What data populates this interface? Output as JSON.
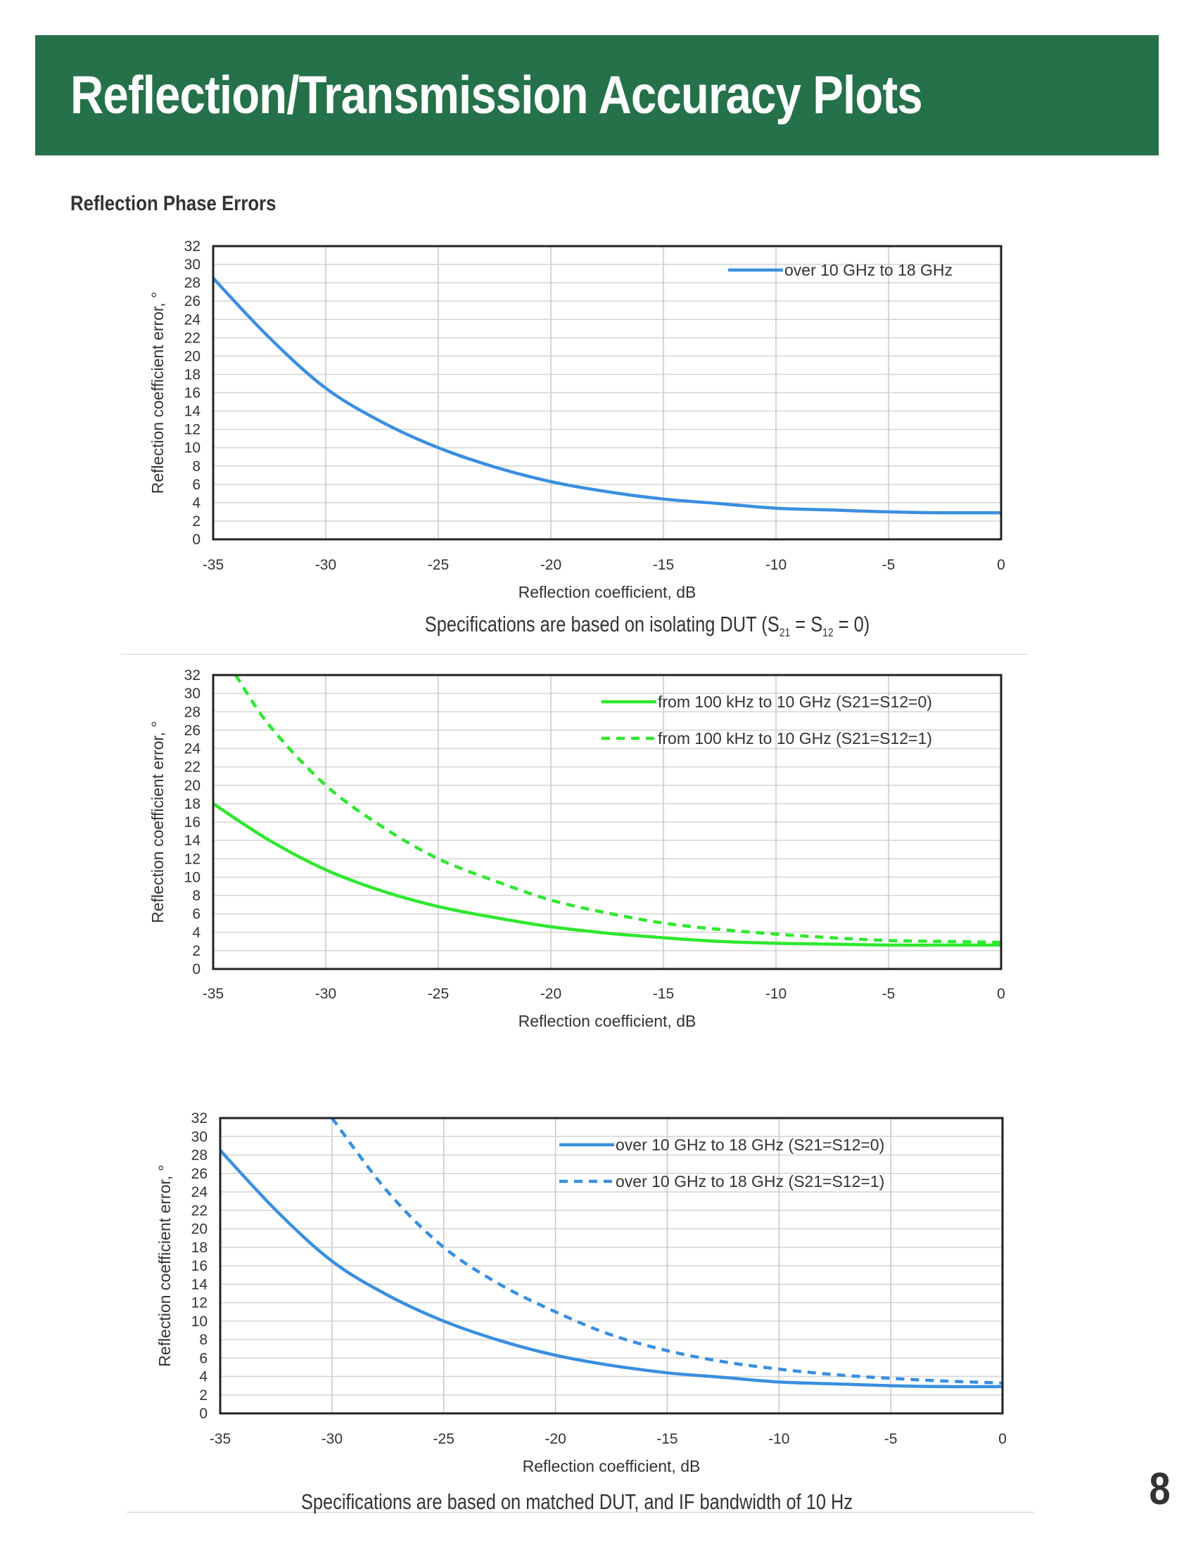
{
  "header": {
    "title": "Reflection/Transmission Accuracy Plots"
  },
  "section": {
    "title": "Reflection Phase Errors"
  },
  "captions": {
    "chart1_prefix": "Specifications are based on isolating DUT (S",
    "chart1_sub1": "21",
    "chart1_mid": " = S",
    "chart1_sub2": "12",
    "chart1_suffix": " = 0)",
    "chart3": "Specifications are based on matched DUT, and IF bandwidth of 10 Hz"
  },
  "page_number": "8",
  "colors": {
    "header_bg": "#25714a",
    "blue": "#3a8fe0",
    "green": "#2ee82e"
  },
  "chart_data": [
    {
      "type": "line",
      "title": "",
      "xlabel": "Reflection coefficient, dB",
      "ylabel": "Reflection coefficient error, °",
      "xlim": [
        -35,
        0
      ],
      "ylim": [
        0,
        32
      ],
      "x_ticks": [
        -35,
        -30,
        -25,
        -20,
        -15,
        -10,
        -5,
        0
      ],
      "y_ticks": [
        0,
        2,
        4,
        6,
        8,
        10,
        12,
        14,
        16,
        18,
        20,
        22,
        24,
        26,
        28,
        30,
        32
      ],
      "grid": true,
      "legend": "top-right",
      "series": [
        {
          "name": "over 10 GHz to 18 GHz",
          "color": "#3a8fe0",
          "dashed": false,
          "x": [
            -35,
            -32.5,
            -30,
            -27.5,
            -25,
            -22.5,
            -20,
            -17.5,
            -15,
            -12.5,
            -10,
            -7.5,
            -5,
            -2.5,
            0
          ],
          "y": [
            28.5,
            22,
            16.5,
            12.8,
            10,
            7.9,
            6.3,
            5.2,
            4.4,
            3.9,
            3.4,
            3.2,
            3.0,
            2.9,
            2.9
          ]
        }
      ]
    },
    {
      "type": "line",
      "title": "",
      "xlabel": "Reflection coefficient, dB",
      "ylabel": "Reflection coefficient error, °",
      "xlim": [
        -35,
        0
      ],
      "ylim": [
        0,
        32
      ],
      "x_ticks": [
        -35,
        -30,
        -25,
        -20,
        -15,
        -10,
        -5,
        0
      ],
      "y_ticks": [
        0,
        2,
        4,
        6,
        8,
        10,
        12,
        14,
        16,
        18,
        20,
        22,
        24,
        26,
        28,
        30,
        32
      ],
      "grid": true,
      "legend": "top-right",
      "series": [
        {
          "name": "from 100 kHz to 10 GHz (S21=S12=0)",
          "color": "#2ee82e",
          "dashed": false,
          "x": [
            -35,
            -32.5,
            -30,
            -27.5,
            -25,
            -22.5,
            -20,
            -17.5,
            -15,
            -12.5,
            -10,
            -7.5,
            -5,
            -2.5,
            0
          ],
          "y": [
            18,
            14,
            10.8,
            8.5,
            6.8,
            5.6,
            4.6,
            3.9,
            3.4,
            3.0,
            2.8,
            2.7,
            2.6,
            2.6,
            2.6
          ]
        },
        {
          "name": "from 100 kHz to 10 GHz (S21=S12=1)",
          "color": "#2ee82e",
          "dashed": true,
          "x": [
            -34,
            -32.5,
            -30,
            -27.5,
            -25,
            -22.5,
            -20,
            -17.5,
            -15,
            -12.5,
            -10,
            -7.5,
            -5,
            -2.5,
            0
          ],
          "y": [
            32,
            26.5,
            20,
            15.5,
            12,
            9.6,
            7.5,
            6.1,
            5.0,
            4.3,
            3.8,
            3.4,
            3.1,
            3.0,
            2.9
          ]
        }
      ]
    },
    {
      "type": "line",
      "title": "",
      "xlabel": "Reflection coefficient, dB",
      "ylabel": "Reflection coefficient error, °",
      "xlim": [
        -35,
        0
      ],
      "ylim": [
        0,
        32
      ],
      "x_ticks": [
        -35,
        -30,
        -25,
        -20,
        -15,
        -10,
        -5,
        0
      ],
      "y_ticks": [
        0,
        2,
        4,
        6,
        8,
        10,
        12,
        14,
        16,
        18,
        20,
        22,
        24,
        26,
        28,
        30,
        32
      ],
      "grid": true,
      "legend": "top-right",
      "series": [
        {
          "name": "over 10 GHz to 18 GHz (S21=S12=0)",
          "color": "#3a8fe0",
          "dashed": false,
          "x": [
            -35,
            -32.5,
            -30,
            -27.5,
            -25,
            -22.5,
            -20,
            -17.5,
            -15,
            -12.5,
            -10,
            -7.5,
            -5,
            -2.5,
            0
          ],
          "y": [
            28.5,
            22,
            16.5,
            12.8,
            10,
            7.9,
            6.3,
            5.2,
            4.4,
            3.9,
            3.4,
            3.2,
            3.0,
            2.9,
            2.9
          ]
        },
        {
          "name": "over 10 GHz to 18 GHz (S21=S12=1)",
          "color": "#3a8fe0",
          "dashed": true,
          "x": [
            -30,
            -27.5,
            -25,
            -22.5,
            -20,
            -17.5,
            -15,
            -12.5,
            -10,
            -7.5,
            -5,
            -2.5,
            0
          ],
          "y": [
            32,
            24,
            18,
            14,
            11,
            8.5,
            6.8,
            5.6,
            4.8,
            4.2,
            3.8,
            3.5,
            3.3
          ]
        }
      ]
    }
  ]
}
